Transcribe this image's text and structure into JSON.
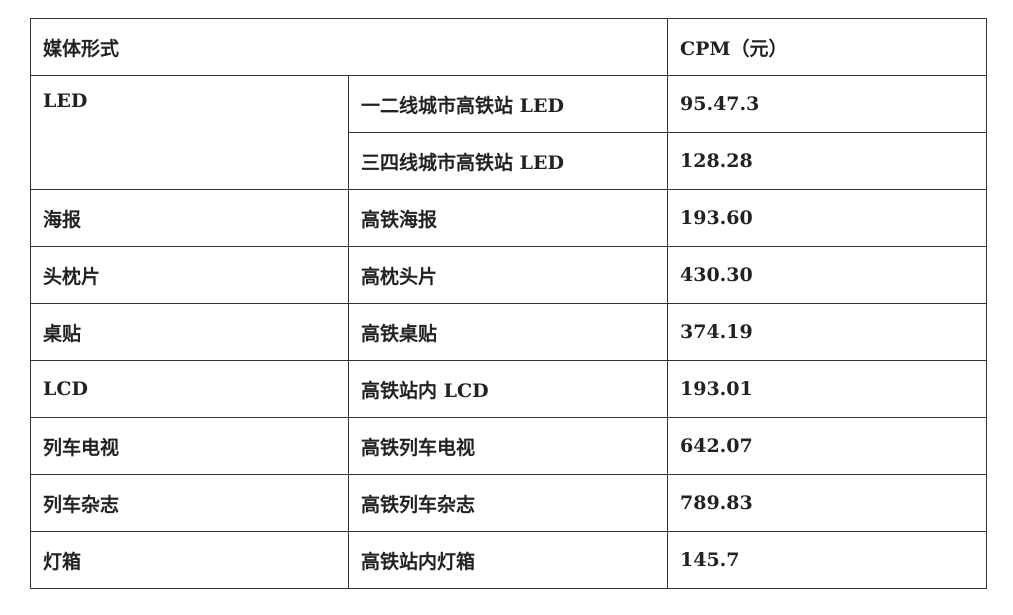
{
  "header": {
    "media_form": "媒体形式",
    "cpm": "CPM（元）"
  },
  "rows": [
    {
      "category": "LED",
      "item": "一二线城市高铁站 LED",
      "cpm": "95.47.3"
    },
    {
      "category": "",
      "item": "三四线城市高铁站 LED",
      "cpm": "128.28"
    },
    {
      "category": "海报",
      "item": "高铁海报",
      "cpm": "193.60"
    },
    {
      "category": "头枕片",
      "item": "高枕头片",
      "cpm": "430.30"
    },
    {
      "category": "桌贴",
      "item": "高铁桌贴",
      "cpm": "374.19"
    },
    {
      "category": "LCD",
      "item": "高铁站内 LCD",
      "cpm": "193.01"
    },
    {
      "category": "列车电视",
      "item": "高铁列车电视",
      "cpm": "642.07"
    },
    {
      "category": "列车杂志",
      "item": "高铁列车杂志",
      "cpm": "789.83"
    },
    {
      "category": "灯箱",
      "item": "高铁站内灯箱",
      "cpm": "145.7"
    }
  ]
}
